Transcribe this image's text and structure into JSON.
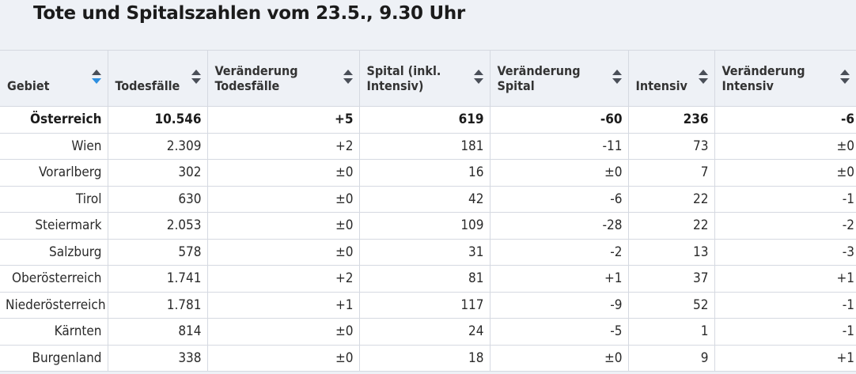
{
  "title": "Tote und Spitalszahlen vom 23.5., 9.30 Uhr",
  "columns": [
    {
      "label": "Gebiet",
      "sort": "active"
    },
    {
      "label": "Todesfälle",
      "sort": "none"
    },
    {
      "label": "Veränderung\nTodesfälle",
      "sort": "none"
    },
    {
      "label": "Spital (inkl.\nIntensiv)",
      "sort": "none"
    },
    {
      "label": "Veränderung\nSpital",
      "sort": "none"
    },
    {
      "label": "Intensiv",
      "sort": "none"
    },
    {
      "label": "Veränderung\nIntensiv",
      "sort": "none"
    }
  ],
  "rows": [
    {
      "region": "Österreich",
      "deaths": "10.546",
      "deaths_change": "+5",
      "hospital": "619",
      "hospital_change": "-60",
      "icu": "236",
      "icu_change": "-6"
    },
    {
      "region": "Wien",
      "deaths": "2.309",
      "deaths_change": "+2",
      "hospital": "181",
      "hospital_change": "-11",
      "icu": "73",
      "icu_change": "±0"
    },
    {
      "region": "Vorarlberg",
      "deaths": "302",
      "deaths_change": "±0",
      "hospital": "16",
      "hospital_change": "±0",
      "icu": "7",
      "icu_change": "±0"
    },
    {
      "region": "Tirol",
      "deaths": "630",
      "deaths_change": "±0",
      "hospital": "42",
      "hospital_change": "-6",
      "icu": "22",
      "icu_change": "-1"
    },
    {
      "region": "Steiermark",
      "deaths": "2.053",
      "deaths_change": "±0",
      "hospital": "109",
      "hospital_change": "-28",
      "icu": "22",
      "icu_change": "-2"
    },
    {
      "region": "Salzburg",
      "deaths": "578",
      "deaths_change": "±0",
      "hospital": "31",
      "hospital_change": "-2",
      "icu": "13",
      "icu_change": "-3"
    },
    {
      "region": "Oberösterreich",
      "deaths": "1.741",
      "deaths_change": "+2",
      "hospital": "81",
      "hospital_change": "+1",
      "icu": "37",
      "icu_change": "+1"
    },
    {
      "region": "Niederösterreich",
      "deaths": "1.781",
      "deaths_change": "+1",
      "hospital": "117",
      "hospital_change": "-9",
      "icu": "52",
      "icu_change": "-1"
    },
    {
      "region": "Kärnten",
      "deaths": "814",
      "deaths_change": "±0",
      "hospital": "24",
      "hospital_change": "-5",
      "icu": "1",
      "icu_change": "-1"
    },
    {
      "region": "Burgenland",
      "deaths": "338",
      "deaths_change": "±0",
      "hospital": "18",
      "hospital_change": "±0",
      "icu": "9",
      "icu_change": "+1"
    }
  ],
  "colors": {
    "header_background": "#eef1f6",
    "sort_active": "#2d8fe0",
    "sort_inactive": "#4a4f58",
    "grid_line": "#d5d9e1"
  },
  "icons": {
    "sort": "sort-arrows-icon"
  }
}
